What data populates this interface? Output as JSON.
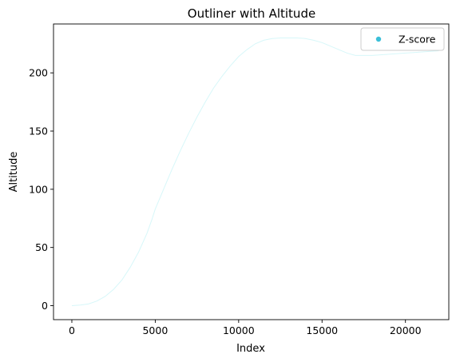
{
  "chart_data": {
    "type": "line",
    "title": "Outliner with Altitude",
    "xlabel": "Index",
    "ylabel": "Altitude",
    "xlim": [
      -1100,
      22600
    ],
    "ylim": [
      -12,
      242
    ],
    "xticks": [
      0,
      5000,
      10000,
      15000,
      20000
    ],
    "yticks": [
      0,
      50,
      100,
      150,
      200
    ],
    "grid": false,
    "legend": {
      "position": "top-right",
      "entries": [
        {
          "label": "Z-score",
          "marker": "circle",
          "color": "#3bbfd8"
        }
      ]
    },
    "series": [
      {
        "color": "#d7f7f9",
        "x": [
          0,
          500,
          1000,
          1500,
          2000,
          2500,
          3000,
          3500,
          4000,
          4500,
          4800,
          5000,
          5500,
          6000,
          6500,
          7000,
          7500,
          8000,
          8500,
          9000,
          9500,
          10000,
          10500,
          11000,
          11500,
          12000,
          12500,
          13000,
          13500,
          14000,
          14500,
          15000,
          15500,
          16000,
          16500,
          17000,
          17500,
          18000,
          18500,
          19000,
          19500,
          20000,
          20500,
          21000,
          21500,
          22000
        ],
        "values": [
          0,
          0.5,
          1.5,
          4,
          8,
          14,
          22,
          33,
          46,
          62,
          74,
          83,
          100,
          117,
          133,
          148,
          162,
          175,
          187,
          197,
          206,
          214,
          220,
          225,
          228,
          229.5,
          230,
          230,
          230,
          229.5,
          228,
          226,
          223,
          220,
          217,
          215,
          215,
          215,
          215.5,
          216,
          216.5,
          217,
          217.5,
          218,
          218.5,
          219
        ]
      }
    ]
  }
}
